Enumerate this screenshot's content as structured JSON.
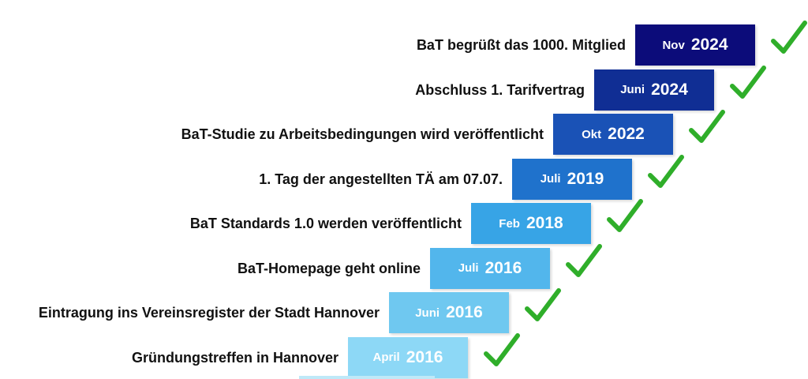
{
  "milestones": [
    {
      "label": "BaT begrüßt das 1000. Mitglied",
      "month": "Nov",
      "year": "2024",
      "color": "#0c0c7a",
      "done": true
    },
    {
      "label": "Abschluss 1. Tarifvertrag",
      "month": "Juni",
      "year": "2024",
      "color": "#102e94",
      "done": true
    },
    {
      "label": "BaT-Studie zu Arbeitsbedingungen wird veröffentlicht",
      "month": "Okt",
      "year": "2022",
      "color": "#1a52b6",
      "done": true
    },
    {
      "label": "1. Tag der angestellten TÄ am 07.07.",
      "month": "Juli",
      "year": "2019",
      "color": "#1f72cc",
      "done": true
    },
    {
      "label": "BaT Standards 1.0 werden veröffentlicht",
      "month": "Feb",
      "year": "2018",
      "color": "#37a4e6",
      "done": true
    },
    {
      "label": "BaT-Homepage geht online",
      "month": "Juli",
      "year": "2016",
      "color": "#52b6ec",
      "done": true
    },
    {
      "label": "Eintragung ins Vereinsregister der Stadt Hannover",
      "month": "Juni",
      "year": "2016",
      "color": "#6fc8f0",
      "done": true
    },
    {
      "label": "Gründungstreffen in Hannover",
      "month": "April",
      "year": "2016",
      "color": "#8dd8f6",
      "done": true
    }
  ],
  "check_color": "#2fae2a"
}
